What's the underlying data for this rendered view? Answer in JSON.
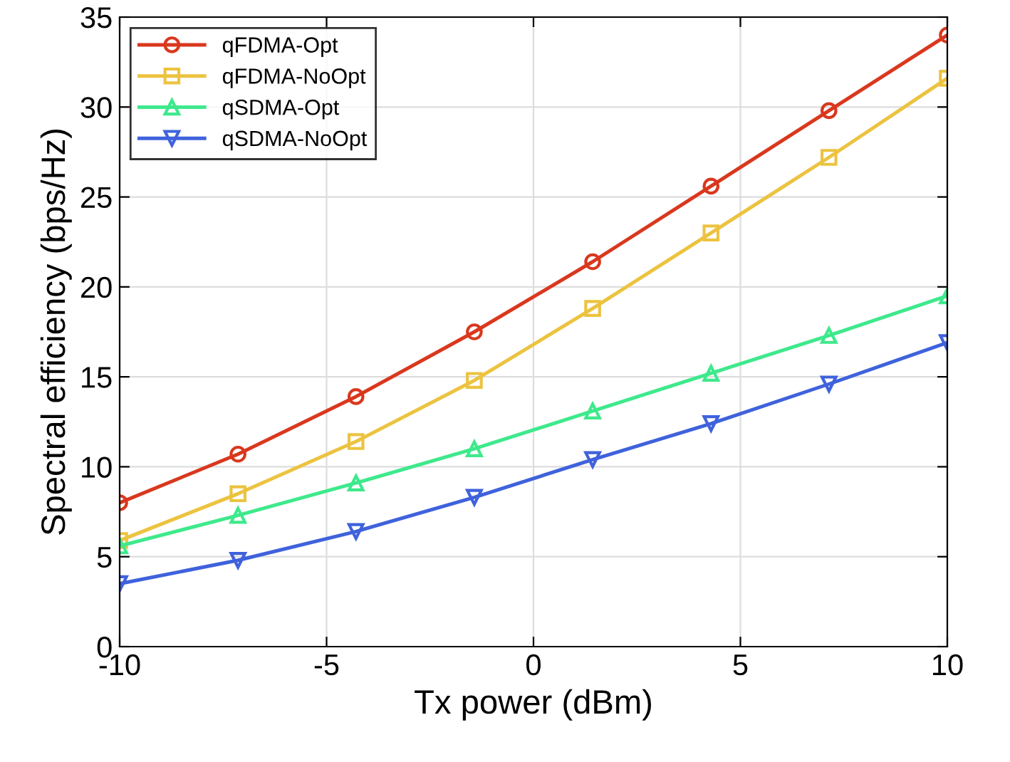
{
  "chart_data": {
    "type": "line",
    "xlabel": "Tx power (dBm)",
    "ylabel": "Spectral efficiency (bps/Hz)",
    "x": [
      -10,
      -7.14,
      -4.29,
      -1.43,
      1.43,
      4.29,
      7.14,
      10
    ],
    "series": [
      {
        "name": "qFDMA-Opt",
        "color": "#d9381e",
        "marker": "circle",
        "values": [
          8.0,
          10.7,
          13.9,
          17.5,
          21.4,
          25.6,
          29.8,
          34.0
        ]
      },
      {
        "name": "qFDMA-NoOpt",
        "color": "#ecc340",
        "marker": "square",
        "values": [
          5.9,
          8.5,
          11.4,
          14.8,
          18.8,
          23.0,
          27.2,
          31.6
        ]
      },
      {
        "name": "qSDMA-Opt",
        "color": "#3ee98c",
        "marker": "triangle",
        "values": [
          5.6,
          7.3,
          9.1,
          11.0,
          13.1,
          15.2,
          17.3,
          19.5
        ]
      },
      {
        "name": "qSDMA-NoOpt",
        "color": "#3f62dc",
        "marker": "triangle_down",
        "values": [
          3.5,
          4.8,
          6.4,
          8.3,
          10.4,
          12.4,
          14.6,
          16.9
        ]
      }
    ],
    "xlim": [
      -10,
      10
    ],
    "xticks": [
      -10,
      -5,
      0,
      5,
      10
    ],
    "ylim": [
      0,
      35
    ],
    "yticks": [
      0,
      5,
      10,
      15,
      20,
      25,
      30,
      35
    ],
    "grid": true,
    "legend": "top left",
    "line_style": "solid"
  }
}
